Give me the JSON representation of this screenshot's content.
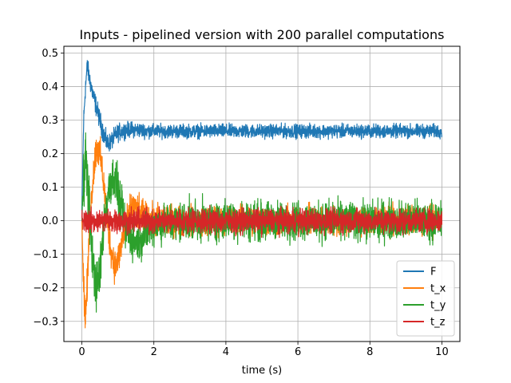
{
  "chart_data": {
    "type": "line",
    "title": "Inputs - pipelined version with 200 parallel computations",
    "xlabel": "time (s)",
    "ylabel": "",
    "xlim": [
      -0.5,
      10.5
    ],
    "ylim": [
      -0.36,
      0.52
    ],
    "xticks": [
      0,
      2,
      4,
      6,
      8,
      10
    ],
    "yticks": [
      -0.3,
      -0.2,
      -0.1,
      0.0,
      0.1,
      0.2,
      0.3,
      0.4,
      0.5
    ],
    "ytick_labels": [
      "−0.3",
      "−0.2",
      "−0.1",
      "0.0",
      "0.1",
      "0.2",
      "0.3",
      "0.4",
      "0.5"
    ],
    "grid": true,
    "legend_position": "lower-right",
    "series": [
      {
        "name": "F",
        "color": "#1f77b4",
        "x": [
          0.0,
          0.05,
          0.1,
          0.15,
          0.2,
          0.3,
          0.4,
          0.5,
          0.6,
          0.7,
          0.8,
          0.9,
          1.0,
          1.2,
          1.4,
          1.6,
          1.8,
          2.0,
          3.0,
          4.0,
          5.0,
          6.0,
          7.0,
          8.0,
          9.0,
          10.0
        ],
        "y": [
          0.03,
          0.3,
          0.4,
          0.46,
          0.43,
          0.38,
          0.34,
          0.3,
          0.26,
          0.23,
          0.235,
          0.25,
          0.262,
          0.27,
          0.272,
          0.27,
          0.268,
          0.267,
          0.267,
          0.267,
          0.267,
          0.267,
          0.267,
          0.267,
          0.267,
          0.267
        ],
        "noise": [
          0.0,
          0.02,
          0.02,
          0.02,
          0.02,
          0.02,
          0.02,
          0.02,
          0.02,
          0.02,
          0.018,
          0.018,
          0.018,
          0.016,
          0.016,
          0.015,
          0.015,
          0.014,
          0.014,
          0.014,
          0.014,
          0.014,
          0.014,
          0.014,
          0.014,
          0.014
        ]
      },
      {
        "name": "t_x",
        "color": "#ff7f0e",
        "x": [
          0.0,
          0.05,
          0.1,
          0.15,
          0.2,
          0.3,
          0.4,
          0.5,
          0.6,
          0.7,
          0.8,
          0.9,
          1.0,
          1.1,
          1.2,
          1.4,
          1.6,
          1.8,
          2.0,
          3.0,
          4.0,
          5.0,
          6.0,
          7.0,
          8.0,
          9.0,
          10.0
        ],
        "y": [
          0.0,
          -0.2,
          -0.28,
          -0.2,
          -0.05,
          0.12,
          0.22,
          0.2,
          0.12,
          0.0,
          -0.08,
          -0.13,
          -0.12,
          -0.07,
          -0.02,
          0.04,
          0.02,
          0.0,
          0.0,
          0.0,
          0.0,
          0.0,
          0.0,
          0.0,
          0.0,
          0.0,
          0.0
        ],
        "noise": [
          0.0,
          0.04,
          0.04,
          0.04,
          0.04,
          0.035,
          0.035,
          0.035,
          0.035,
          0.035,
          0.035,
          0.035,
          0.035,
          0.035,
          0.035,
          0.035,
          0.035,
          0.035,
          0.035,
          0.03,
          0.03,
          0.03,
          0.03,
          0.03,
          0.03,
          0.03,
          0.03
        ]
      },
      {
        "name": "t_y",
        "color": "#2ca02c",
        "x": [
          0.0,
          0.05,
          0.1,
          0.2,
          0.3,
          0.4,
          0.5,
          0.6,
          0.7,
          0.8,
          0.9,
          1.0,
          1.1,
          1.2,
          1.4,
          1.6,
          1.8,
          2.0,
          3.0,
          4.0,
          5.0,
          6.0,
          7.0,
          8.0,
          9.0,
          10.0
        ],
        "y": [
          0.0,
          0.15,
          0.2,
          0.05,
          -0.12,
          -0.2,
          -0.16,
          -0.02,
          0.06,
          0.12,
          0.13,
          0.08,
          0.03,
          -0.02,
          -0.06,
          -0.06,
          -0.03,
          -0.01,
          0.0,
          0.0,
          0.0,
          0.0,
          0.0,
          0.0,
          0.0,
          0.0
        ],
        "noise": [
          0.0,
          0.07,
          0.07,
          0.06,
          0.05,
          0.05,
          0.05,
          0.05,
          0.05,
          0.05,
          0.05,
          0.05,
          0.045,
          0.045,
          0.04,
          0.04,
          0.04,
          0.04,
          0.04,
          0.04,
          0.04,
          0.04,
          0.04,
          0.04,
          0.04,
          0.04
        ]
      },
      {
        "name": "t_z",
        "color": "#d62728",
        "x": [
          0.0,
          0.5,
          1.0,
          2.0,
          4.0,
          6.0,
          8.0,
          10.0
        ],
        "y": [
          0.0,
          0.0,
          0.0,
          0.0,
          0.0,
          0.0,
          0.0,
          0.0
        ],
        "noise": [
          0.025,
          0.025,
          0.025,
          0.025,
          0.025,
          0.025,
          0.025,
          0.025
        ]
      }
    ]
  }
}
